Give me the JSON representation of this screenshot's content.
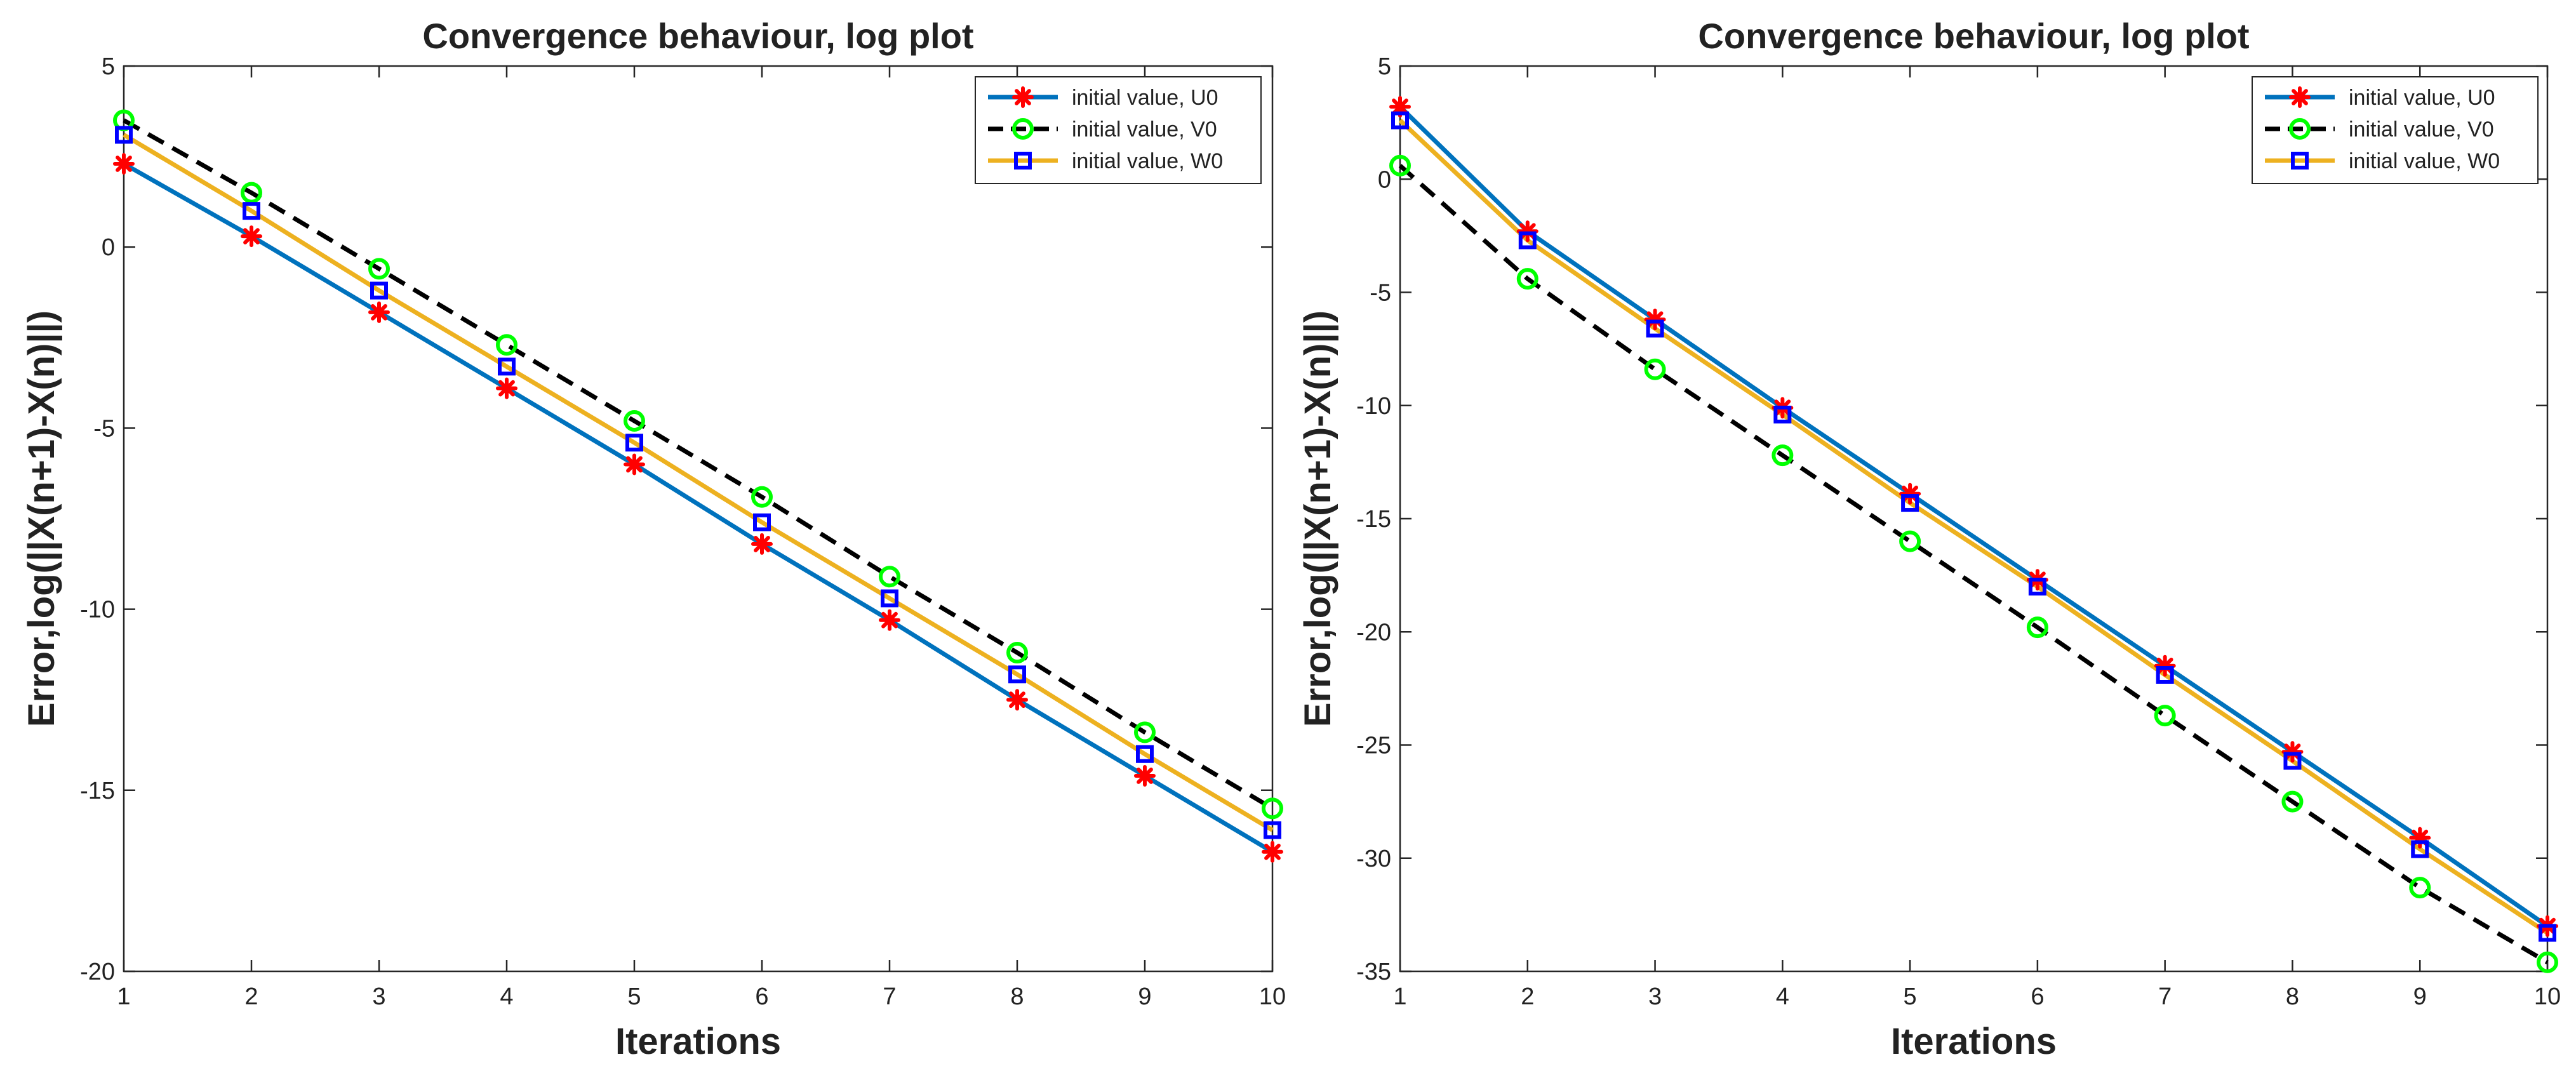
{
  "chart_data": [
    {
      "type": "line",
      "title": "Convergence behaviour, log plot",
      "xlabel": "Iterations",
      "ylabel": "Error,log(||X(n+1)-X(n)||)",
      "xlim": [
        1,
        10
      ],
      "ylim": [
        -20,
        5
      ],
      "xticks": [
        1,
        2,
        3,
        4,
        5,
        6,
        7,
        8,
        9,
        10
      ],
      "yticks": [
        5,
        0,
        -5,
        -10,
        -15,
        -20
      ],
      "x": [
        1,
        2,
        3,
        4,
        5,
        6,
        7,
        8,
        9,
        10
      ],
      "legend_position": "top-right",
      "series": [
        {
          "name": "initial value, U0",
          "line_color": "#0072BD",
          "line_style": "solid",
          "marker": "asterisk",
          "marker_color": "#FF0000",
          "values": [
            2.3,
            0.3,
            -1.8,
            -3.9,
            -6.0,
            -8.2,
            -10.3,
            -12.5,
            -14.6,
            -16.7
          ]
        },
        {
          "name": "initial value, V0",
          "line_color": "#000000",
          "line_style": "dashed",
          "marker": "circle",
          "marker_color": "#00FF00",
          "values": [
            3.5,
            1.5,
            -0.6,
            -2.7,
            -4.8,
            -6.9,
            -9.1,
            -11.2,
            -13.4,
            -15.5
          ]
        },
        {
          "name": "initial value, W0",
          "line_color": "#EDB120",
          "line_style": "solid",
          "marker": "square",
          "marker_color": "#0000FF",
          "values": [
            3.1,
            1.0,
            -1.2,
            -3.3,
            -5.4,
            -7.6,
            -9.7,
            -11.8,
            -14.0,
            -16.1
          ]
        }
      ]
    },
    {
      "type": "line",
      "title": "Convergence behaviour, log plot",
      "xlabel": "Iterations",
      "ylabel": "Error,log(||X(n+1)-X(n)||)",
      "xlim": [
        1,
        10
      ],
      "ylim": [
        -35,
        5
      ],
      "xticks": [
        1,
        2,
        3,
        4,
        5,
        6,
        7,
        8,
        9,
        10
      ],
      "yticks": [
        5,
        0,
        -5,
        -10,
        -15,
        -20,
        -25,
        -30,
        -35
      ],
      "x": [
        1,
        2,
        3,
        4,
        5,
        6,
        7,
        8,
        9,
        10
      ],
      "legend_position": "top-right",
      "series": [
        {
          "name": "initial value, U0",
          "line_color": "#0072BD",
          "line_style": "solid",
          "marker": "asterisk",
          "marker_color": "#FF0000",
          "values": [
            3.2,
            -2.3,
            -6.2,
            -10.1,
            -13.9,
            -17.7,
            -21.5,
            -25.3,
            -29.1,
            -33.0
          ]
        },
        {
          "name": "initial value, V0",
          "line_color": "#000000",
          "line_style": "dashed",
          "marker": "circle",
          "marker_color": "#00FF00",
          "values": [
            0.6,
            -4.4,
            -8.4,
            -12.2,
            -16.0,
            -19.8,
            -23.7,
            -27.5,
            -31.3,
            -34.6
          ]
        },
        {
          "name": "initial value, W0",
          "line_color": "#EDB120",
          "line_style": "solid",
          "marker": "square",
          "marker_color": "#0000FF",
          "values": [
            2.6,
            -2.7,
            -6.6,
            -10.4,
            -14.3,
            -18.0,
            -21.9,
            -25.7,
            -29.6,
            -33.3
          ]
        }
      ]
    }
  ]
}
